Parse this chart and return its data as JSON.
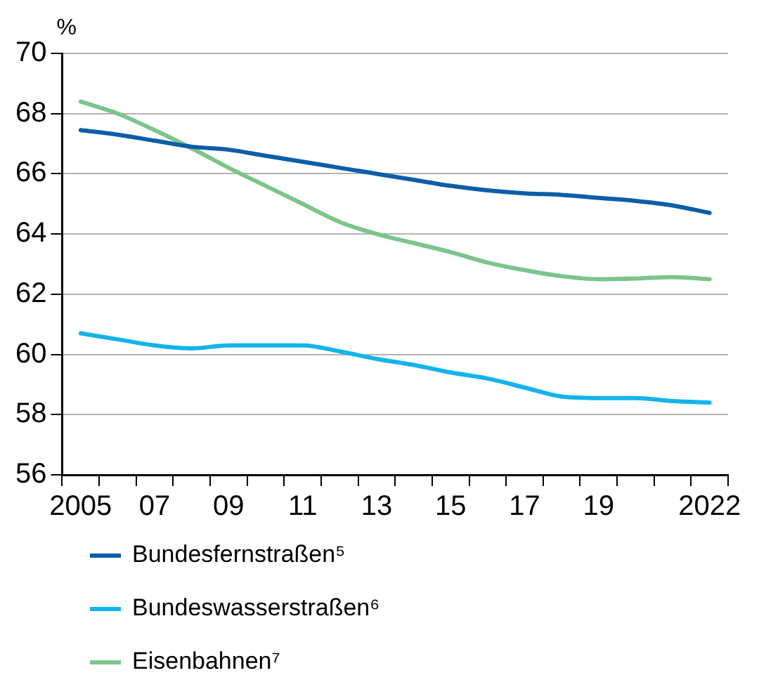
{
  "chart_data": {
    "type": "line",
    "ylabel": "%",
    "categories": [
      "2005",
      null,
      "07",
      null,
      "09",
      null,
      "11",
      null,
      "13",
      null,
      "15",
      null,
      "17",
      null,
      "19",
      null,
      null,
      "2022"
    ],
    "series": [
      {
        "name": "Bundesfernstraßen⁵",
        "color": "#0b5ea8",
        "values": [
          67.45,
          67.3,
          67.1,
          66.9,
          66.8,
          66.6,
          66.4,
          66.2,
          66.0,
          65.8,
          65.6,
          65.45,
          65.35,
          65.3,
          65.2,
          65.1,
          64.95,
          64.7
        ]
      },
      {
        "name": "Bundeswasserstraßen⁶",
        "color": "#12b4ea",
        "values": [
          60.7,
          60.5,
          60.3,
          60.2,
          60.3,
          60.3,
          60.3,
          60.1,
          59.85,
          59.65,
          59.4,
          59.2,
          58.9,
          58.6,
          58.55,
          58.55,
          58.45,
          58.4
        ]
      },
      {
        "name": "Eisenbahnen⁷",
        "color": "#7cc48c",
        "values": [
          68.4,
          68.0,
          67.45,
          66.85,
          66.2,
          65.6,
          65.0,
          64.4,
          64.0,
          63.7,
          63.4,
          63.05,
          62.8,
          62.6,
          62.5,
          62.52,
          62.57,
          62.5
        ]
      }
    ],
    "ylim": [
      56,
      70
    ],
    "yticks": [
      56,
      58,
      60,
      62,
      64,
      66,
      68,
      70
    ],
    "grid": "y",
    "legend": "bottom",
    "marker": "none",
    "line_style": "solid"
  }
}
